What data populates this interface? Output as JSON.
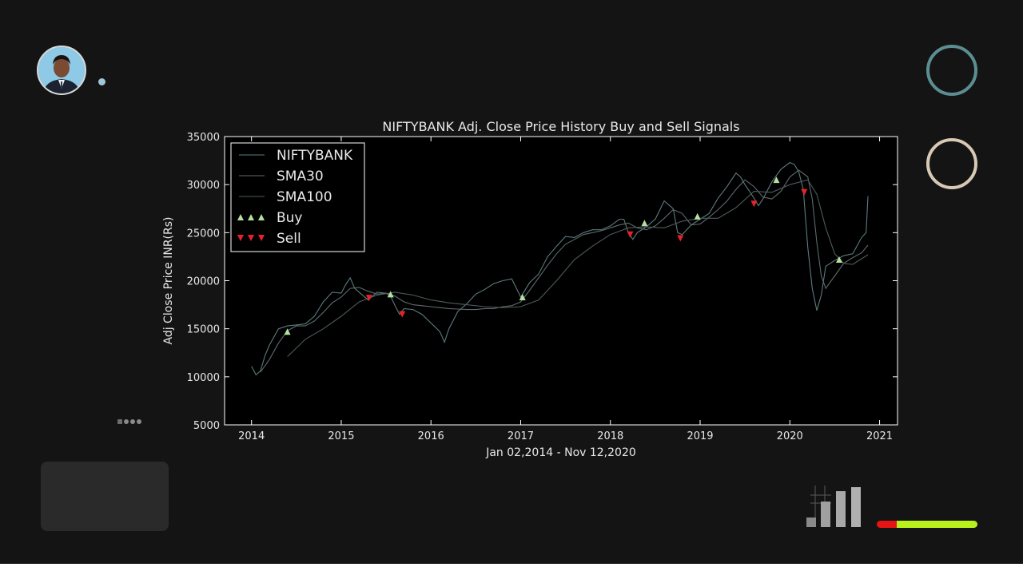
{
  "chart_data": {
    "type": "line",
    "title": "NIFTYBANK Adj. Close Price History Buy and Sell Signals",
    "xlabel": "Jan 02,2014 - Nov 12,2020",
    "ylabel": "Adj Close Price INR(Rs)",
    "xlim": [
      2013.7,
      2021.2
    ],
    "ylim": [
      5000,
      35000
    ],
    "xticks": [
      "2014",
      "2015",
      "2016",
      "2017",
      "2018",
      "2019",
      "2020",
      "2021"
    ],
    "yticks": [
      "5000",
      "10000",
      "15000",
      "20000",
      "25000",
      "30000",
      "35000"
    ],
    "legend_position": "top-left",
    "legend": [
      "NIFTYBANK",
      "SMA30",
      "SMA100",
      "Buy",
      "Sell"
    ],
    "series": [
      {
        "name": "NIFTYBANK",
        "color": "#5d7b7f",
        "x": [
          2014.0,
          2014.05,
          2014.1,
          2014.15,
          2014.2,
          2014.3,
          2014.4,
          2014.5,
          2014.6,
          2014.7,
          2014.8,
          2014.9,
          2015.0,
          2015.05,
          2015.1,
          2015.15,
          2015.2,
          2015.3,
          2015.4,
          2015.5,
          2015.55,
          2015.6,
          2015.65,
          2015.7,
          2015.8,
          2015.9,
          2016.0,
          2016.1,
          2016.15,
          2016.2,
          2016.3,
          2016.4,
          2016.5,
          2016.6,
          2016.7,
          2016.8,
          2016.9,
          2017.0,
          2017.1,
          2017.2,
          2017.3,
          2017.4,
          2017.5,
          2017.6,
          2017.7,
          2017.8,
          2017.9,
          2018.0,
          2018.1,
          2018.15,
          2018.2,
          2018.25,
          2018.3,
          2018.4,
          2018.5,
          2018.6,
          2018.7,
          2018.75,
          2018.8,
          2018.9,
          2019.0,
          2019.1,
          2019.2,
          2019.3,
          2019.4,
          2019.45,
          2019.5,
          2019.6,
          2019.65,
          2019.7,
          2019.8,
          2019.9,
          2020.0,
          2020.05,
          2020.1,
          2020.15,
          2020.2,
          2020.25,
          2020.3,
          2020.35,
          2020.4,
          2020.5,
          2020.6,
          2020.7,
          2020.8,
          2020.85,
          2020.87
        ],
        "y": [
          11100,
          10200,
          10600,
          12200,
          13300,
          15000,
          15300,
          15400,
          15500,
          16300,
          17800,
          18800,
          18700,
          19600,
          20300,
          19200,
          18800,
          18000,
          18800,
          18700,
          18400,
          17400,
          16500,
          17100,
          17000,
          16500,
          15600,
          14700,
          13600,
          15000,
          16800,
          17600,
          18600,
          19100,
          19700,
          20000,
          20200,
          18300,
          19800,
          20700,
          22500,
          23600,
          24600,
          24500,
          25000,
          25300,
          25300,
          25700,
          26400,
          26400,
          25000,
          24300,
          25000,
          25600,
          26400,
          28300,
          27500,
          25000,
          24800,
          25800,
          26400,
          27000,
          28600,
          29800,
          31200,
          30800,
          30000,
          28600,
          27800,
          28500,
          30300,
          31600,
          32300,
          32100,
          31300,
          29500,
          23500,
          19200,
          16900,
          18500,
          21500,
          22100,
          22600,
          22800,
          24500,
          25000,
          28800
        ]
      },
      {
        "name": "SMA30",
        "color": "#5e6b6d",
        "x": [
          2014.1,
          2014.2,
          2014.3,
          2014.4,
          2014.5,
          2014.6,
          2014.7,
          2014.8,
          2014.9,
          2015.0,
          2015.1,
          2015.2,
          2015.3,
          2015.4,
          2015.5,
          2015.6,
          2015.7,
          2015.8,
          2015.9,
          2016.0,
          2016.1,
          2016.2,
          2016.3,
          2016.4,
          2016.5,
          2016.6,
          2016.7,
          2016.8,
          2016.9,
          2017.0,
          2017.1,
          2017.2,
          2017.3,
          2017.4,
          2017.5,
          2017.6,
          2017.7,
          2017.8,
          2017.9,
          2018.0,
          2018.1,
          2018.2,
          2018.3,
          2018.4,
          2018.5,
          2018.6,
          2018.7,
          2018.8,
          2018.9,
          2019.0,
          2019.1,
          2019.2,
          2019.3,
          2019.4,
          2019.5,
          2019.6,
          2019.7,
          2019.8,
          2019.9,
          2020.0,
          2020.1,
          2020.2,
          2020.25,
          2020.3,
          2020.35,
          2020.4,
          2020.5,
          2020.6,
          2020.7,
          2020.8,
          2020.87
        ],
        "y": [
          10500,
          11800,
          13500,
          14800,
          15300,
          15300,
          15800,
          16700,
          17700,
          18300,
          19200,
          19300,
          18900,
          18600,
          18700,
          18400,
          17800,
          17500,
          17400,
          17300,
          17200,
          17100,
          17050,
          17000,
          17000,
          17100,
          17100,
          17300,
          17400,
          17800,
          19000,
          20300,
          21600,
          22800,
          23800,
          24300,
          24800,
          25000,
          25200,
          25500,
          25800,
          26000,
          25500,
          25300,
          25700,
          26500,
          27400,
          27000,
          25800,
          25900,
          26600,
          27400,
          28300,
          29500,
          30500,
          29800,
          28700,
          28500,
          29300,
          30800,
          31500,
          30800,
          28500,
          24000,
          20500,
          19200,
          20500,
          21800,
          22400,
          22900,
          23700
        ]
      },
      {
        "name": "SMA100",
        "color": "#4e5a5c",
        "x": [
          2014.4,
          2014.6,
          2014.8,
          2015.0,
          2015.2,
          2015.4,
          2015.6,
          2015.8,
          2016.0,
          2016.2,
          2016.4,
          2016.6,
          2016.8,
          2017.0,
          2017.2,
          2017.4,
          2017.6,
          2017.8,
          2018.0,
          2018.2,
          2018.4,
          2018.6,
          2018.8,
          2019.0,
          2019.2,
          2019.4,
          2019.6,
          2019.8,
          2020.0,
          2020.2,
          2020.3,
          2020.4,
          2020.5,
          2020.6,
          2020.7,
          2020.87
        ],
        "y": [
          12100,
          13900,
          15000,
          16300,
          17800,
          18500,
          18800,
          18500,
          18000,
          17700,
          17500,
          17300,
          17200,
          17300,
          18000,
          20000,
          22200,
          23600,
          24800,
          25500,
          25600,
          25500,
          26200,
          26500,
          26500,
          27600,
          29300,
          29200,
          30000,
          30500,
          29000,
          25500,
          22800,
          21800,
          21700,
          22700
        ]
      }
    ],
    "buy_signals": {
      "name": "Buy",
      "color": "#b6e0a0",
      "x": [
        2014.4,
        2015.55,
        2017.02,
        2018.38,
        2018.97,
        2019.85,
        2020.55
      ],
      "y": [
        14700,
        18600,
        18300,
        26000,
        26700,
        30500,
        22200
      ]
    },
    "sell_signals": {
      "name": "Sell",
      "color": "#e8222a",
      "x": [
        2015.31,
        2015.68,
        2018.22,
        2018.78,
        2019.6,
        2020.16
      ],
      "y": [
        18200,
        16500,
        24800,
        24400,
        28000,
        29200
      ]
    }
  },
  "decor": {
    "ring_top_color": "#5c8d92",
    "ring_bottom_color": "#d8c9b5",
    "battery_red": "#e61414",
    "battery_green": "#b8f01c",
    "battery_fill_fraction": 0.8
  }
}
